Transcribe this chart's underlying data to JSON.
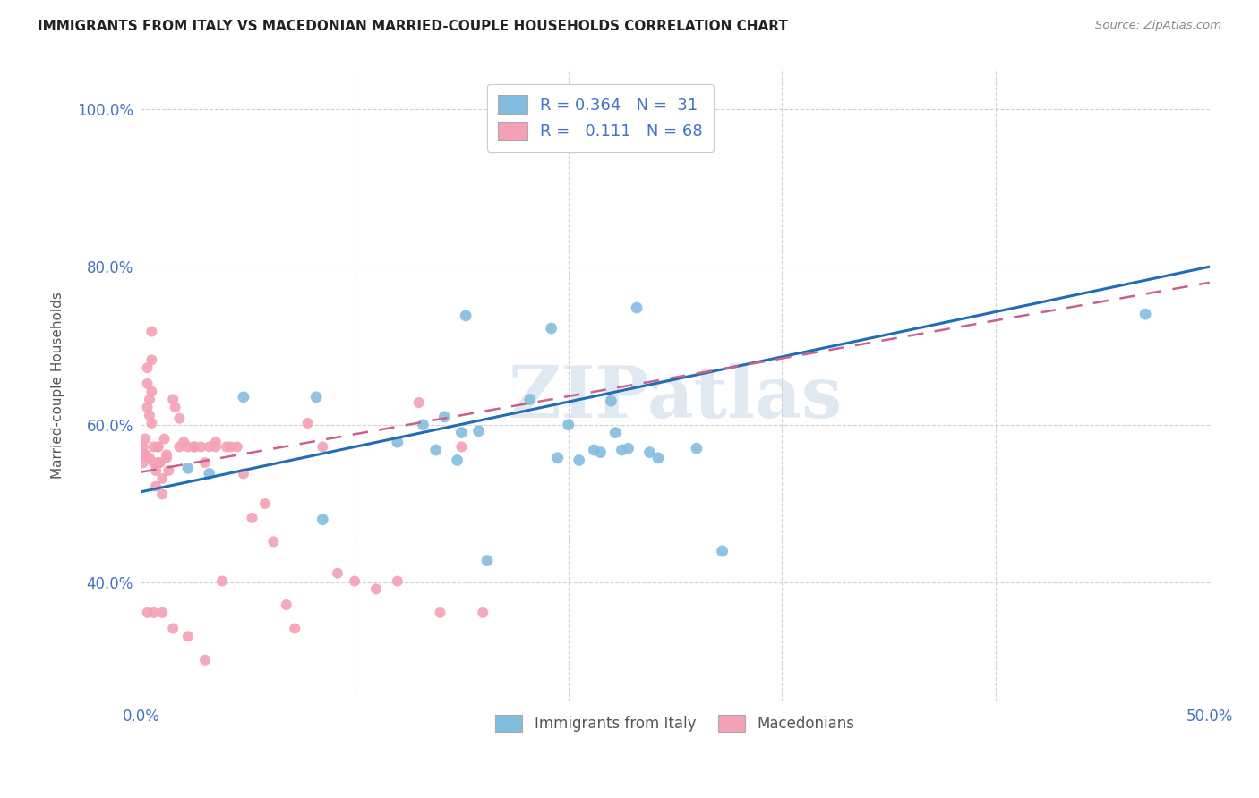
{
  "title": "IMMIGRANTS FROM ITALY VS MACEDONIAN MARRIED-COUPLE HOUSEHOLDS CORRELATION CHART",
  "source": "Source: ZipAtlas.com",
  "ylabel": "Married-couple Households",
  "xlim": [
    0.0,
    0.5
  ],
  "ylim": [
    0.25,
    1.05
  ],
  "xticks": [
    0.0,
    0.1,
    0.2,
    0.3,
    0.4,
    0.5
  ],
  "xticklabels": [
    "0.0%",
    "",
    "",
    "",
    "",
    "50.0%"
  ],
  "yticks": [
    0.4,
    0.6,
    0.8,
    1.0
  ],
  "yticklabels": [
    "40.0%",
    "60.0%",
    "80.0%",
    "100.0%"
  ],
  "legend_italy_label": "Immigrants from Italy",
  "legend_mac_label": "Macedonians",
  "italy_color": "#82bde0",
  "mac_color": "#f4a0b5",
  "italy_line_color": "#1f6eb5",
  "mac_line_color": "#c96090",
  "italy_scatter_x": [
    0.022,
    0.032,
    0.048,
    0.082,
    0.085,
    0.12,
    0.132,
    0.138,
    0.142,
    0.15,
    0.152,
    0.158,
    0.162,
    0.182,
    0.192,
    0.2,
    0.212,
    0.22,
    0.225,
    0.232,
    0.242,
    0.26,
    0.272,
    0.148,
    0.195,
    0.205,
    0.215,
    0.222,
    0.228,
    0.238,
    0.47
  ],
  "italy_scatter_y": [
    0.545,
    0.538,
    0.635,
    0.635,
    0.48,
    0.578,
    0.6,
    0.568,
    0.61,
    0.59,
    0.738,
    0.592,
    0.428,
    0.632,
    0.722,
    0.6,
    0.568,
    0.63,
    0.568,
    0.748,
    0.558,
    0.57,
    0.44,
    0.555,
    0.558,
    0.555,
    0.565,
    0.59,
    0.57,
    0.565,
    0.74
  ],
  "mac_scatter_x": [
    0.001,
    0.001,
    0.002,
    0.002,
    0.003,
    0.003,
    0.003,
    0.004,
    0.004,
    0.005,
    0.005,
    0.005,
    0.005,
    0.006,
    0.006,
    0.007,
    0.007,
    0.008,
    0.008,
    0.009,
    0.01,
    0.01,
    0.011,
    0.012,
    0.013,
    0.015,
    0.016,
    0.018,
    0.02,
    0.022,
    0.025,
    0.028,
    0.03,
    0.032,
    0.035,
    0.038,
    0.042,
    0.045,
    0.048,
    0.052,
    0.058,
    0.062,
    0.068,
    0.072,
    0.078,
    0.085,
    0.092,
    0.1,
    0.11,
    0.12,
    0.13,
    0.14,
    0.15,
    0.16,
    0.002,
    0.003,
    0.004,
    0.006,
    0.008,
    0.01,
    0.012,
    0.015,
    0.018,
    0.022,
    0.025,
    0.03,
    0.035,
    0.04
  ],
  "mac_scatter_y": [
    0.572,
    0.552,
    0.582,
    0.562,
    0.672,
    0.652,
    0.622,
    0.632,
    0.612,
    0.718,
    0.682,
    0.642,
    0.602,
    0.572,
    0.552,
    0.542,
    0.522,
    0.572,
    0.552,
    0.552,
    0.532,
    0.512,
    0.582,
    0.562,
    0.542,
    0.632,
    0.622,
    0.608,
    0.578,
    0.572,
    0.572,
    0.572,
    0.552,
    0.572,
    0.578,
    0.402,
    0.572,
    0.572,
    0.538,
    0.482,
    0.5,
    0.452,
    0.372,
    0.342,
    0.602,
    0.572,
    0.412,
    0.402,
    0.392,
    0.402,
    0.628,
    0.362,
    0.572,
    0.362,
    0.562,
    0.362,
    0.558,
    0.362,
    0.572,
    0.362,
    0.558,
    0.342,
    0.572,
    0.332,
    0.572,
    0.302,
    0.572,
    0.572
  ],
  "italy_line_x": [
    0.0,
    0.5
  ],
  "italy_line_y": [
    0.515,
    0.8
  ],
  "mac_line_x": [
    0.0,
    0.5
  ],
  "mac_line_y": [
    0.54,
    0.78
  ]
}
